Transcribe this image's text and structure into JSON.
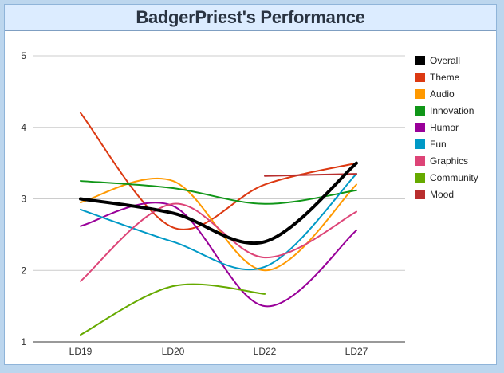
{
  "title": "BadgerPriest's Performance",
  "chart_data": {
    "type": "line",
    "title": "BadgerPriest's Performance",
    "categories": [
      "LD19",
      "LD20",
      "LD22",
      "LD27"
    ],
    "ylim": [
      1,
      5
    ],
    "yticks": [
      "1",
      "2",
      "3",
      "4",
      "5"
    ],
    "grid": true,
    "legend_position": "right",
    "series": [
      {
        "name": "Overall",
        "color": "#000000",
        "values": [
          3.0,
          2.8,
          2.4,
          3.5
        ]
      },
      {
        "name": "Theme",
        "color": "#dc3912",
        "values": [
          4.2,
          2.6,
          3.2,
          3.5
        ]
      },
      {
        "name": "Audio",
        "color": "#ff9900",
        "values": [
          2.95,
          3.25,
          2.0,
          3.2
        ]
      },
      {
        "name": "Innovation",
        "color": "#109618",
        "values": [
          3.25,
          3.15,
          2.93,
          3.12
        ]
      },
      {
        "name": "Humor",
        "color": "#990099",
        "values": [
          2.62,
          2.9,
          1.5,
          2.56
        ]
      },
      {
        "name": "Fun",
        "color": "#0099c6",
        "values": [
          2.85,
          2.4,
          2.05,
          3.35
        ]
      },
      {
        "name": "Graphics",
        "color": "#dd4477",
        "values": [
          1.85,
          2.93,
          2.18,
          2.82
        ]
      },
      {
        "name": "Community",
        "color": "#66aa00",
        "values": [
          1.1,
          1.78,
          1.67,
          null
        ]
      },
      {
        "name": "Mood",
        "color": "#b82e2e",
        "values": [
          null,
          null,
          3.32,
          3.35
        ]
      }
    ]
  }
}
